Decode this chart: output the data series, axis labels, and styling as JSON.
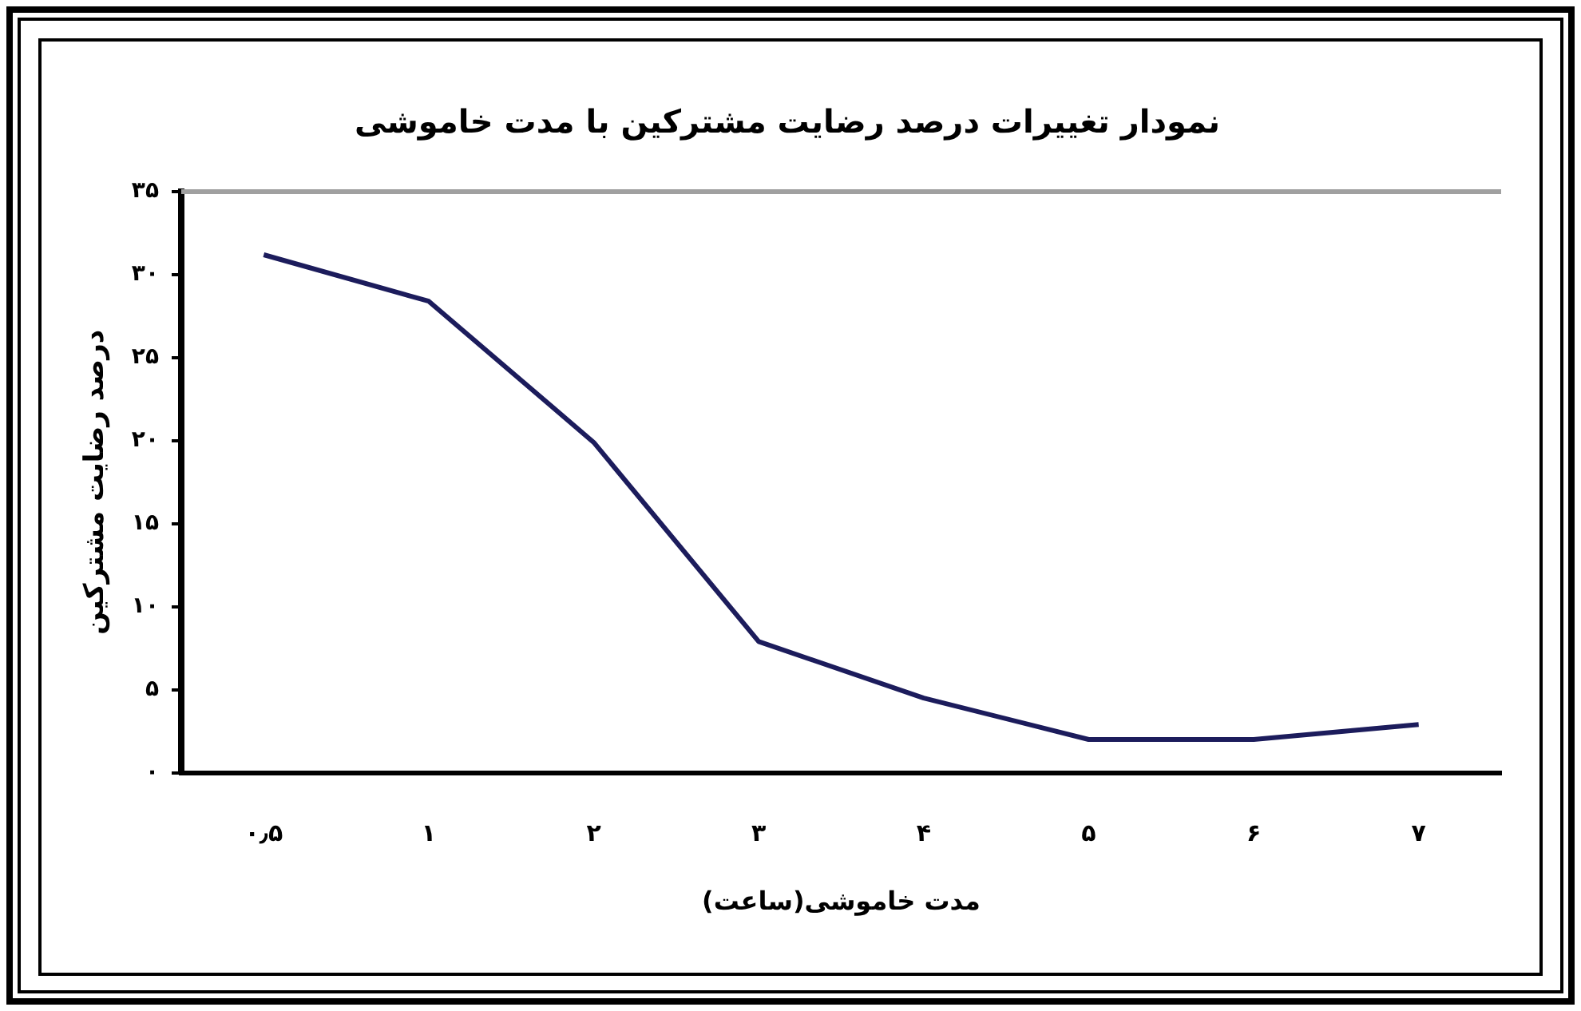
{
  "chart_data": {
    "type": "line",
    "title": "نمودار تغییرات درصد رضایت مشترکین با مدت خاموشی",
    "xlabel": "مدت خاموشی(ساعت)",
    "ylabel": "درصد رضایت مشترکین",
    "categories": [
      "۰٫۵",
      "۱",
      "۲",
      "۳",
      "۴",
      "۵",
      "۶",
      "۷"
    ],
    "series": [
      {
        "color": "#1c1c5c",
        "values": [
          31.2,
          28.4,
          19.9,
          7.9,
          4.5,
          2,
          2,
          2.9
        ]
      }
    ],
    "ylim": [
      0,
      35
    ],
    "yticks": [
      {
        "value": 0,
        "label": "۰"
      },
      {
        "value": 5,
        "label": "۵"
      },
      {
        "value": 10,
        "label": "۱۰"
      },
      {
        "value": 15,
        "label": "۱۵"
      },
      {
        "value": 20,
        "label": "۲۰"
      },
      {
        "value": 25,
        "label": "۲۵"
      },
      {
        "value": 30,
        "label": "۳۰"
      },
      {
        "value": 35,
        "label": "۳۵"
      }
    ],
    "grid": false,
    "legend": false,
    "marker": "none",
    "line_style": "solid"
  }
}
